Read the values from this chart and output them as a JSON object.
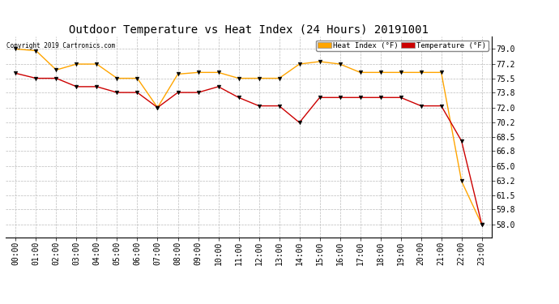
{
  "title": "Outdoor Temperature vs Heat Index (24 Hours) 20191001",
  "copyright": "Copyright 2019 Cartronics.com",
  "hours": [
    "00:00",
    "01:00",
    "02:00",
    "03:00",
    "04:00",
    "05:00",
    "06:00",
    "07:00",
    "08:00",
    "09:00",
    "10:00",
    "11:00",
    "12:00",
    "13:00",
    "14:00",
    "15:00",
    "16:00",
    "17:00",
    "18:00",
    "19:00",
    "20:00",
    "21:00",
    "22:00",
    "23:00"
  ],
  "heat_index": [
    79.0,
    78.8,
    76.5,
    77.2,
    77.2,
    75.5,
    75.5,
    72.0,
    76.0,
    76.2,
    76.2,
    75.5,
    75.5,
    75.5,
    77.2,
    77.5,
    77.2,
    76.2,
    76.2,
    76.2,
    76.2,
    76.2,
    63.2,
    58.0
  ],
  "temperature": [
    76.1,
    75.5,
    75.5,
    74.5,
    74.5,
    73.8,
    73.8,
    72.0,
    73.8,
    73.8,
    74.5,
    73.2,
    72.2,
    72.2,
    70.2,
    73.2,
    73.2,
    73.2,
    73.2,
    73.2,
    72.2,
    72.2,
    68.0,
    58.0
  ],
  "heat_index_color": "#FFA500",
  "temperature_color": "#CC0000",
  "line_color_heat": "#333333",
  "line_color_temp": "#333333",
  "ylim_min": 56.5,
  "ylim_max": 80.5,
  "yticks": [
    58.0,
    59.8,
    61.5,
    63.2,
    65.0,
    66.8,
    68.5,
    70.2,
    72.0,
    73.8,
    75.5,
    77.2,
    79.0
  ],
  "bg_color": "#FFFFFF",
  "grid_color": "#BBBBBB",
  "title_fontsize": 10,
  "tick_fontsize": 7,
  "legend_heat_label": "Heat Index (°F)",
  "legend_temp_label": "Temperature (°F)"
}
